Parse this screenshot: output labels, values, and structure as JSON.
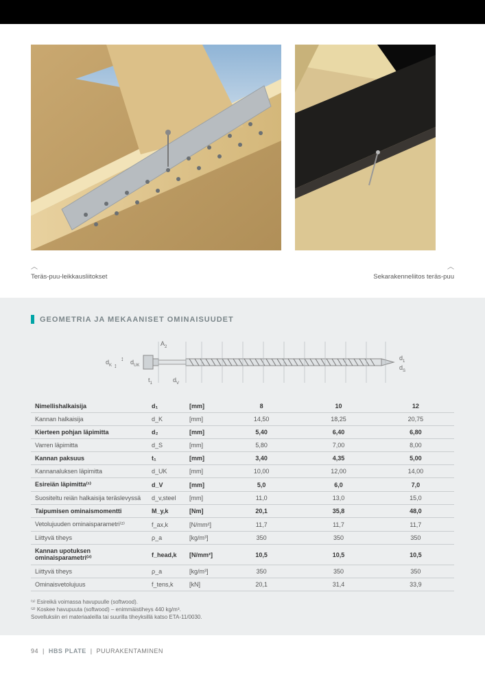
{
  "captions": {
    "left": "Teräs-puu-leikkausliitokset",
    "right": "Sekarakenneliitos teräs-puu"
  },
  "section_title": "GEOMETRIA JA MEKAANISET OMINAISUUDET",
  "diagram_labels": {
    "dk": "d",
    "dk_sub": "K",
    "t1": "t",
    "t1_sub": "1",
    "duk": "d",
    "duk_sub": "UK",
    "a2": "A",
    "a2_sub": "2",
    "d1": "d",
    "d1_sub": "1",
    "ds": "d",
    "ds_sub": "S"
  },
  "table": {
    "header": [
      "Nimellishalkaisija",
      "d₁",
      "[mm]",
      "8",
      "10",
      "12"
    ],
    "rows": [
      {
        "bold": false,
        "cells": [
          "Kannan halkaisija",
          "d_K",
          "[mm]",
          "14,50",
          "18,25",
          "20,75"
        ]
      },
      {
        "bold": true,
        "cells": [
          "Kierteen pohjan läpimitta",
          "d₂",
          "[mm]",
          "5,40",
          "6,40",
          "6,80"
        ]
      },
      {
        "bold": false,
        "cells": [
          "Varren läpimitta",
          "d_S",
          "[mm]",
          "5,80",
          "7,00",
          "8,00"
        ]
      },
      {
        "bold": true,
        "cells": [
          "Kannan paksuus",
          "t₁",
          "[mm]",
          "3,40",
          "4,35",
          "5,00"
        ]
      },
      {
        "bold": false,
        "cells": [
          "Kannanaluksen läpimitta",
          "d_UK",
          "[mm]",
          "10,00",
          "12,00",
          "14,00"
        ]
      },
      {
        "bold": true,
        "cells": [
          "Esireiän läpimitta⁽¹⁾",
          "d_V",
          "[mm]",
          "5,0",
          "6,0",
          "7,0"
        ]
      },
      {
        "bold": false,
        "cells": [
          "Suositeltu reiän halkaisija teräslevyssä",
          "d_v,steel",
          "[mm]",
          "11,0",
          "13,0",
          "15,0"
        ]
      },
      {
        "bold": true,
        "cells": [
          "Taipumisen ominaismomentti",
          "M_y,k",
          "[Nm]",
          "20,1",
          "35,8",
          "48,0"
        ]
      },
      {
        "bold": false,
        "cells": [
          "Vetolujuuden ominaisparametri⁽²⁾",
          "f_ax,k",
          "[N/mm²]",
          "11,7",
          "11,7",
          "11,7"
        ]
      },
      {
        "bold": false,
        "cells": [
          "Liittyvä tiheys",
          "ρ_a",
          "[kg/m³]",
          "350",
          "350",
          "350"
        ]
      },
      {
        "bold": true,
        "cells": [
          "Kannan upotuksen ominaisparametri⁽²⁾",
          "f_head,k",
          "[N/mm²]",
          "10,5",
          "10,5",
          "10,5"
        ]
      },
      {
        "bold": false,
        "cells": [
          "Liittyvä tiheys",
          "ρ_a",
          "[kg/m³]",
          "350",
          "350",
          "350"
        ]
      },
      {
        "bold": false,
        "cells": [
          "Ominaisvetolujuus",
          "f_tens,k",
          "[kN]",
          "20,1",
          "31,4",
          "33,9"
        ]
      }
    ]
  },
  "footnotes": [
    "⁽¹⁾ Esireikä voimassa havupuulle (softwood).",
    "⁽²⁾ Koskee havupuuta (softwood) – enimmäistiheys 440 kg/m³.",
    "Sovelluksiin eri materiaaleilla tai suurilla tiheyksillä katso ETA-11/0030."
  ],
  "footer": {
    "page": "94",
    "product": "HBS PLATE",
    "category": "PUURAKENTAMINEN"
  }
}
